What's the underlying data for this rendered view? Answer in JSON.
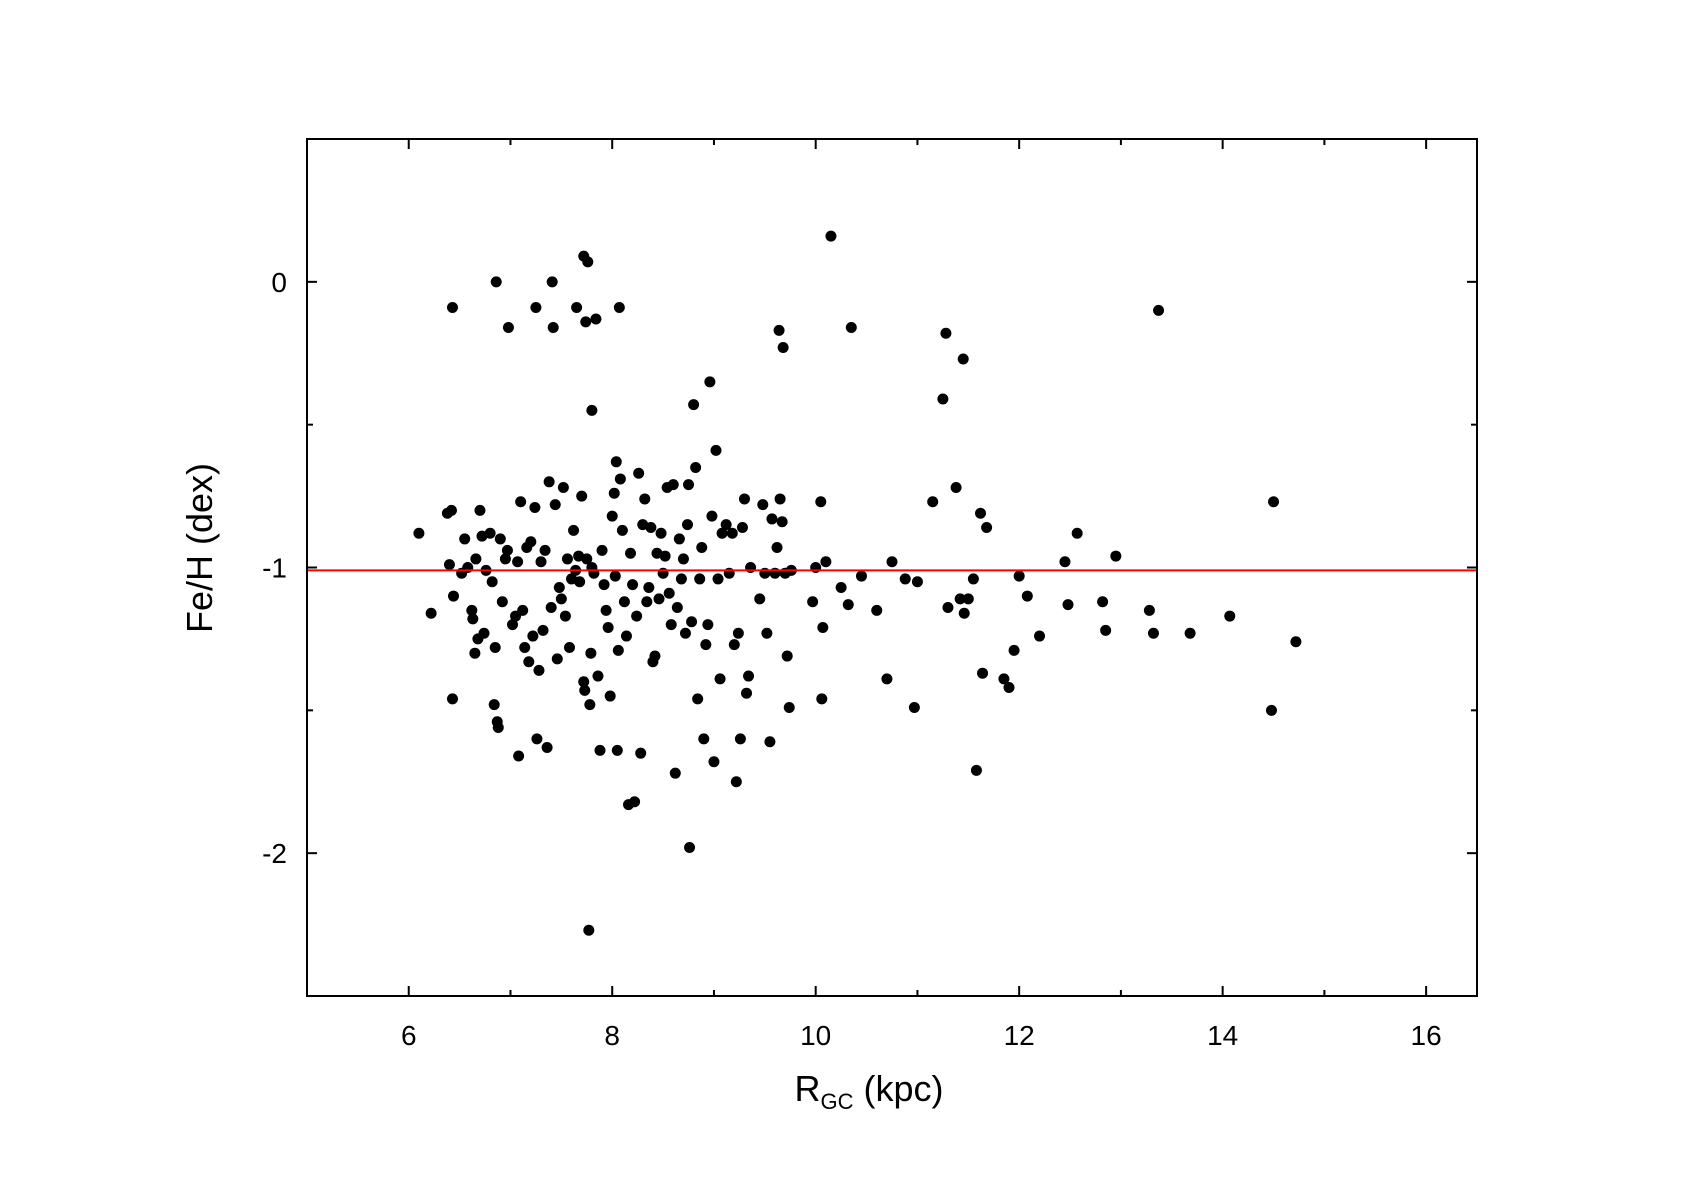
{
  "chart_data": {
    "type": "scatter",
    "xlabel_main": "R",
    "xlabel_sub": "GC",
    "xlabel_tail": " (kpc)",
    "ylabel": "Fe/H (dex)",
    "xlim": [
      5,
      16.5
    ],
    "ylim": [
      -2.5,
      0.5
    ],
    "xticks": [
      6,
      8,
      10,
      12,
      14,
      16
    ],
    "yticks": [
      0,
      -1,
      -2
    ],
    "xtick_labels": [
      "6",
      "8",
      "10",
      "12",
      "14",
      "16"
    ],
    "ytick_labels": [
      "0",
      "-1",
      "-2"
    ],
    "xminor": [
      7,
      9,
      11,
      13,
      15
    ],
    "yminor": [
      -0.5,
      -1.5
    ],
    "grid": false,
    "point_color": "#000000",
    "reference_line": {
      "y": -1.01,
      "color": "#ff0000"
    },
    "points": [
      [
        6.1,
        -0.88
      ],
      [
        6.22,
        -1.16
      ],
      [
        6.38,
        -0.81
      ],
      [
        6.42,
        -0.8
      ],
      [
        6.4,
        -0.99
      ],
      [
        6.44,
        -1.1
      ],
      [
        6.43,
        -1.46
      ],
      [
        6.43,
        -0.09
      ],
      [
        6.52,
        -1.02
      ],
      [
        6.55,
        -0.9
      ],
      [
        6.58,
        -1.0
      ],
      [
        6.62,
        -1.15
      ],
      [
        6.63,
        -1.18
      ],
      [
        6.65,
        -1.3
      ],
      [
        6.66,
        -0.97
      ],
      [
        6.68,
        -1.25
      ],
      [
        6.7,
        -0.8
      ],
      [
        6.72,
        -0.89
      ],
      [
        6.74,
        -1.23
      ],
      [
        6.76,
        -1.01
      ],
      [
        6.8,
        -0.88
      ],
      [
        6.82,
        -1.05
      ],
      [
        6.84,
        -1.48
      ],
      [
        6.85,
        -1.28
      ],
      [
        6.87,
        -1.54
      ],
      [
        6.88,
        -1.56
      ],
      [
        6.86,
        0.0
      ],
      [
        6.9,
        -0.9
      ],
      [
        6.92,
        -1.12
      ],
      [
        6.95,
        -0.97
      ],
      [
        6.97,
        -0.94
      ],
      [
        6.98,
        -0.16
      ],
      [
        7.02,
        -1.2
      ],
      [
        7.05,
        -1.17
      ],
      [
        7.07,
        -0.98
      ],
      [
        7.08,
        -1.66
      ],
      [
        7.1,
        -0.77
      ],
      [
        7.12,
        -1.15
      ],
      [
        7.14,
        -1.28
      ],
      [
        7.16,
        -0.93
      ],
      [
        7.18,
        -1.33
      ],
      [
        7.2,
        -0.91
      ],
      [
        7.22,
        -1.24
      ],
      [
        7.24,
        -0.79
      ],
      [
        7.26,
        -1.6
      ],
      [
        7.25,
        -0.09
      ],
      [
        7.28,
        -1.36
      ],
      [
        7.3,
        -0.98
      ],
      [
        7.32,
        -1.22
      ],
      [
        7.34,
        -0.94
      ],
      [
        7.36,
        -1.63
      ],
      [
        7.38,
        -0.7
      ],
      [
        7.4,
        -1.14
      ],
      [
        7.42,
        -0.16
      ],
      [
        7.41,
        0.0
      ],
      [
        7.44,
        -0.78
      ],
      [
        7.46,
        -1.32
      ],
      [
        7.48,
        -1.07
      ],
      [
        7.5,
        -1.11
      ],
      [
        7.52,
        -0.72
      ],
      [
        7.54,
        -1.17
      ],
      [
        7.56,
        -0.97
      ],
      [
        7.58,
        -1.28
      ],
      [
        7.6,
        -1.04
      ],
      [
        7.62,
        -0.87
      ],
      [
        7.64,
        -1.01
      ],
      [
        7.65,
        -0.09
      ],
      [
        7.67,
        -0.96
      ],
      [
        7.68,
        -1.05
      ],
      [
        7.7,
        -0.75
      ],
      [
        7.72,
        -1.4
      ],
      [
        7.73,
        -1.43
      ],
      [
        7.74,
        -0.14
      ],
      [
        7.72,
        0.09
      ],
      [
        7.76,
        0.07
      ],
      [
        7.75,
        -0.97
      ],
      [
        7.78,
        -1.48
      ],
      [
        7.79,
        -1.3
      ],
      [
        7.8,
        -0.45
      ],
      [
        7.8,
        -1.0
      ],
      [
        7.82,
        -1.02
      ],
      [
        7.84,
        -0.13
      ],
      [
        7.86,
        -1.38
      ],
      [
        7.88,
        -1.64
      ],
      [
        7.9,
        -0.94
      ],
      [
        7.92,
        -1.06
      ],
      [
        7.94,
        -1.15
      ],
      [
        7.96,
        -1.21
      ],
      [
        7.98,
        -1.45
      ],
      [
        8.0,
        -0.82
      ],
      [
        8.02,
        -0.74
      ],
      [
        8.03,
        -1.03
      ],
      [
        8.04,
        -0.63
      ],
      [
        8.05,
        -1.64
      ],
      [
        8.06,
        -1.29
      ],
      [
        8.07,
        -0.09
      ],
      [
        8.08,
        -0.69
      ],
      [
        8.1,
        -0.87
      ],
      [
        8.12,
        -1.12
      ],
      [
        8.14,
        -1.24
      ],
      [
        8.16,
        -1.83
      ],
      [
        8.18,
        -0.95
      ],
      [
        8.2,
        -1.06
      ],
      [
        8.22,
        -1.82
      ],
      [
        8.24,
        -1.17
      ],
      [
        8.26,
        -0.67
      ],
      [
        8.28,
        -1.65
      ],
      [
        8.3,
        -0.85
      ],
      [
        8.32,
        -0.76
      ],
      [
        8.34,
        -1.12
      ],
      [
        8.36,
        -1.07
      ],
      [
        8.38,
        -0.86
      ],
      [
        8.4,
        -1.33
      ],
      [
        8.42,
        -1.31
      ],
      [
        8.44,
        -0.95
      ],
      [
        8.46,
        -1.11
      ],
      [
        8.48,
        -0.88
      ],
      [
        8.5,
        -1.02
      ],
      [
        8.52,
        -0.96
      ],
      [
        8.54,
        -0.72
      ],
      [
        8.56,
        -1.09
      ],
      [
        8.58,
        -1.2
      ],
      [
        8.6,
        -0.71
      ],
      [
        8.62,
        -1.72
      ],
      [
        8.64,
        -1.14
      ],
      [
        8.66,
        -0.9
      ],
      [
        8.68,
        -1.04
      ],
      [
        8.7,
        -0.97
      ],
      [
        8.72,
        -1.23
      ],
      [
        8.74,
        -0.85
      ],
      [
        8.75,
        -0.71
      ],
      [
        8.76,
        -1.98
      ],
      [
        8.78,
        -1.19
      ],
      [
        8.8,
        -0.43
      ],
      [
        8.82,
        -0.65
      ],
      [
        8.84,
        -1.46
      ],
      [
        8.86,
        -1.04
      ],
      [
        8.88,
        -0.93
      ],
      [
        8.9,
        -1.6
      ],
      [
        8.92,
        -1.27
      ],
      [
        8.94,
        -1.2
      ],
      [
        8.96,
        -0.35
      ],
      [
        8.98,
        -0.82
      ],
      [
        9.0,
        -1.68
      ],
      [
        9.02,
        -0.59
      ],
      [
        9.04,
        -1.04
      ],
      [
        9.06,
        -1.39
      ],
      [
        9.08,
        -0.88
      ],
      [
        9.12,
        -0.85
      ],
      [
        9.15,
        -1.02
      ],
      [
        9.18,
        -0.88
      ],
      [
        9.2,
        -1.27
      ],
      [
        9.22,
        -1.75
      ],
      [
        9.24,
        -1.23
      ],
      [
        9.26,
        -1.6
      ],
      [
        9.28,
        -0.86
      ],
      [
        9.3,
        -0.76
      ],
      [
        9.32,
        -1.44
      ],
      [
        9.34,
        -1.38
      ],
      [
        9.36,
        -1.0
      ],
      [
        9.45,
        -1.11
      ],
      [
        9.48,
        -0.78
      ],
      [
        9.5,
        -1.02
      ],
      [
        9.52,
        -1.23
      ],
      [
        9.55,
        -1.61
      ],
      [
        9.57,
        -0.83
      ],
      [
        9.6,
        -1.02
      ],
      [
        9.62,
        -0.93
      ],
      [
        9.64,
        -0.17
      ],
      [
        9.65,
        -0.76
      ],
      [
        9.67,
        -0.84
      ],
      [
        9.68,
        -0.23
      ],
      [
        9.7,
        -1.02
      ],
      [
        9.72,
        -1.31
      ],
      [
        9.74,
        -1.49
      ],
      [
        9.76,
        -1.01
      ],
      [
        9.97,
        -1.12
      ],
      [
        10.0,
        -1.0
      ],
      [
        10.05,
        -0.77
      ],
      [
        10.06,
        -1.46
      ],
      [
        10.07,
        -1.21
      ],
      [
        10.1,
        -0.98
      ],
      [
        10.15,
        0.16
      ],
      [
        10.25,
        -1.07
      ],
      [
        10.32,
        -1.13
      ],
      [
        10.35,
        -0.16
      ],
      [
        10.45,
        -1.03
      ],
      [
        10.6,
        -1.15
      ],
      [
        10.7,
        -1.39
      ],
      [
        10.75,
        -0.98
      ],
      [
        10.88,
        -1.04
      ],
      [
        10.97,
        -1.49
      ],
      [
        11.0,
        -1.05
      ],
      [
        11.15,
        -0.77
      ],
      [
        11.25,
        -0.41
      ],
      [
        11.28,
        -0.18
      ],
      [
        11.3,
        -1.14
      ],
      [
        11.38,
        -0.72
      ],
      [
        11.42,
        -1.11
      ],
      [
        11.45,
        -0.27
      ],
      [
        11.46,
        -1.16
      ],
      [
        11.5,
        -1.11
      ],
      [
        11.55,
        -1.04
      ],
      [
        11.58,
        -1.71
      ],
      [
        11.62,
        -0.81
      ],
      [
        11.64,
        -1.37
      ],
      [
        11.68,
        -0.86
      ],
      [
        11.85,
        -1.39
      ],
      [
        11.9,
        -1.42
      ],
      [
        11.95,
        -1.29
      ],
      [
        12.0,
        -1.03
      ],
      [
        12.08,
        -1.1
      ],
      [
        12.2,
        -1.24
      ],
      [
        12.45,
        -0.98
      ],
      [
        12.48,
        -1.13
      ],
      [
        12.57,
        -0.88
      ],
      [
        12.82,
        -1.12
      ],
      [
        12.85,
        -1.22
      ],
      [
        12.95,
        -0.96
      ],
      [
        13.28,
        -1.15
      ],
      [
        13.32,
        -1.23
      ],
      [
        13.37,
        -0.1
      ],
      [
        13.68,
        -1.23
      ],
      [
        14.07,
        -1.17
      ],
      [
        14.48,
        -1.5
      ],
      [
        14.5,
        -0.77
      ],
      [
        14.72,
        -1.26
      ],
      [
        7.77,
        -2.27
      ]
    ]
  }
}
